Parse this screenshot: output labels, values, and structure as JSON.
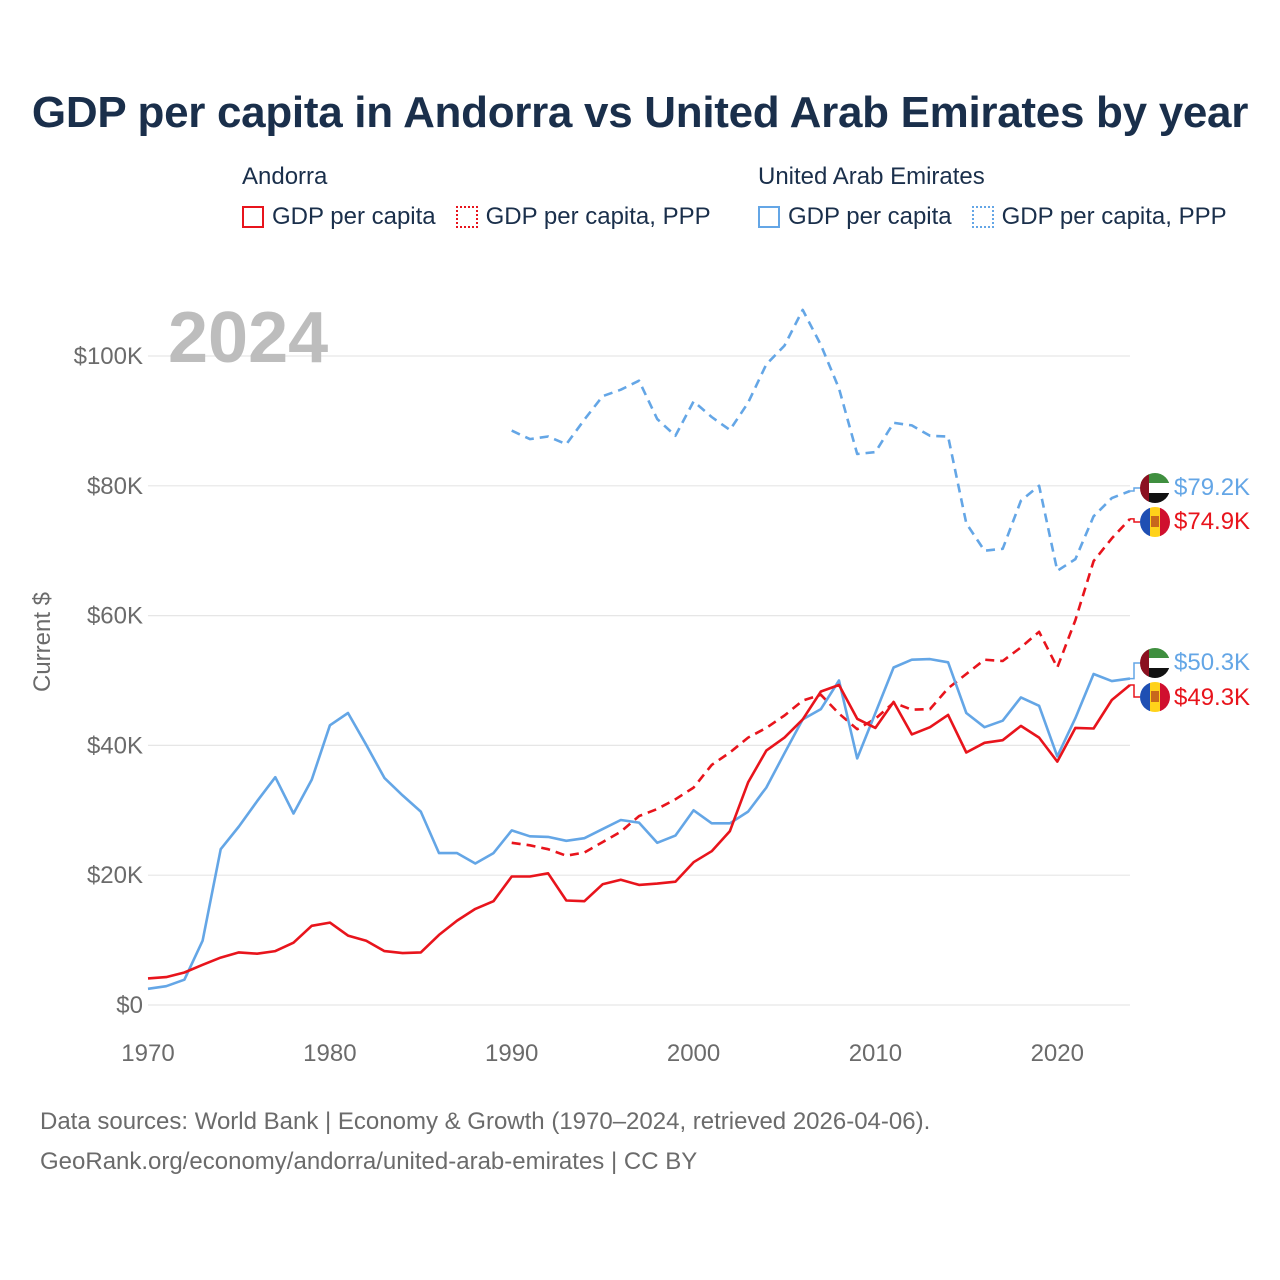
{
  "title": "GDP per capita in Andorra vs United Arab Emirates by year",
  "legend": {
    "groups": [
      {
        "name": "Andorra",
        "items": [
          {
            "label": "GDP per capita",
            "style": "solid",
            "color": "#e8141c"
          },
          {
            "label": "GDP per capita, PPP",
            "style": "dotted",
            "color": "#e8141c"
          }
        ]
      },
      {
        "name": "United Arab Emirates",
        "items": [
          {
            "label": "GDP per capita",
            "style": "solid",
            "color": "#64a6e6"
          },
          {
            "label": "GDP per capita, PPP",
            "style": "dotted",
            "color": "#64a6e6"
          }
        ]
      }
    ]
  },
  "year_label": "2024",
  "footer": {
    "line1": "Data sources: World Bank | Economy & Growth (1970–2024, retrieved 2026-04-06).",
    "line2": "GeoRank.org/economy/andorra/united-arab-emirates | CC BY"
  },
  "chart_data": {
    "type": "line",
    "ylabel": "Current $",
    "xlim": [
      1970,
      2024
    ],
    "ylim": [
      0,
      110000
    ],
    "x_ticks": [
      1970,
      1980,
      1990,
      2000,
      2010,
      2020
    ],
    "y_ticks": [
      0,
      20000,
      40000,
      60000,
      80000,
      100000
    ],
    "y_tick_labels": [
      "$0",
      "$20K",
      "$40K",
      "$60K",
      "$80K",
      "$100K"
    ],
    "series": [
      {
        "name": "United Arab Emirates GDP per capita, PPP",
        "country": "uae",
        "dashed": true,
        "color": "#64a6e6",
        "end_label": "$79.2K",
        "x": [
          1990,
          1991,
          1992,
          1993,
          1994,
          1995,
          1996,
          1997,
          1998,
          1999,
          2000,
          2001,
          2002,
          2003,
          2004,
          2005,
          2006,
          2007,
          2008,
          2009,
          2010,
          2011,
          2012,
          2013,
          2014,
          2015,
          2016,
          2017,
          2018,
          2019,
          2020,
          2021,
          2022,
          2023,
          2024
        ],
        "y": [
          88500,
          87200,
          87600,
          86400,
          90200,
          93800,
          94800,
          96200,
          90300,
          87700,
          93000,
          90600,
          88600,
          92800,
          98700,
          101600,
          107100,
          101700,
          95000,
          84900,
          85200,
          89700,
          89300,
          87700,
          87600,
          74200,
          70000,
          70300,
          77700,
          80000,
          66900,
          68700,
          75300,
          78100,
          79200
        ]
      },
      {
        "name": "Andorra GDP per capita, PPP",
        "country": "andorra",
        "dashed": true,
        "color": "#e8141c",
        "end_label": "$74.9K",
        "x": [
          1990,
          1991,
          1992,
          1993,
          1994,
          1995,
          1996,
          1997,
          1998,
          1999,
          2000,
          2001,
          2002,
          2003,
          2004,
          2005,
          2006,
          2007,
          2008,
          2009,
          2010,
          2011,
          2012,
          2013,
          2014,
          2015,
          2016,
          2017,
          2018,
          2019,
          2020,
          2021,
          2022,
          2023,
          2024
        ],
        "y": [
          25000,
          24600,
          24000,
          23000,
          23500,
          25100,
          26700,
          29100,
          30200,
          31700,
          33500,
          37000,
          38900,
          41200,
          42700,
          44600,
          46900,
          47800,
          44900,
          42500,
          44100,
          46600,
          45500,
          45600,
          48800,
          51000,
          53200,
          53000,
          55100,
          57500,
          52000,
          59300,
          68400,
          71900,
          74900
        ]
      },
      {
        "name": "United Arab Emirates GDP per capita",
        "country": "uae",
        "dashed": false,
        "color": "#64a6e6",
        "end_label": "$50.3K",
        "x": [
          1970,
          1971,
          1972,
          1973,
          1974,
          1975,
          1976,
          1977,
          1978,
          1979,
          1980,
          1981,
          1982,
          1983,
          1984,
          1985,
          1986,
          1987,
          1988,
          1989,
          1990,
          1991,
          1992,
          1993,
          1994,
          1995,
          1996,
          1997,
          1998,
          1999,
          2000,
          2001,
          2002,
          2003,
          2004,
          2005,
          2006,
          2007,
          2008,
          2009,
          2010,
          2011,
          2012,
          2013,
          2014,
          2015,
          2016,
          2017,
          2018,
          2019,
          2020,
          2021,
          2022,
          2023,
          2024
        ],
        "y": [
          2500,
          2900,
          3900,
          9900,
          24000,
          27500,
          31400,
          35100,
          29500,
          34700,
          43100,
          45000,
          40100,
          35000,
          32300,
          29800,
          23400,
          23400,
          21800,
          23400,
          26900,
          26000,
          25900,
          25300,
          25700,
          27100,
          28500,
          28100,
          25000,
          26100,
          30000,
          28000,
          28000,
          29800,
          33500,
          38800,
          44000,
          45600,
          50000,
          38000,
          45000,
          52000,
          53200,
          53300,
          52800,
          45000,
          42800,
          43800,
          47400,
          46100,
          38300,
          44200,
          51000,
          49900,
          50300
        ]
      },
      {
        "name": "Andorra GDP per capita",
        "country": "andorra",
        "dashed": false,
        "color": "#e8141c",
        "end_label": "$49.3K",
        "x": [
          1970,
          1971,
          1972,
          1973,
          1974,
          1975,
          1976,
          1977,
          1978,
          1979,
          1980,
          1981,
          1982,
          1983,
          1984,
          1985,
          1986,
          1987,
          1988,
          1989,
          1990,
          1991,
          1992,
          1993,
          1994,
          1995,
          1996,
          1997,
          1998,
          1999,
          2000,
          2001,
          2002,
          2003,
          2004,
          2005,
          2006,
          2007,
          2008,
          2009,
          2010,
          2011,
          2012,
          2013,
          2014,
          2015,
          2016,
          2017,
          2018,
          2019,
          2020,
          2021,
          2022,
          2023,
          2024
        ],
        "y": [
          4100,
          4300,
          5000,
          6200,
          7300,
          8100,
          7900,
          8300,
          9600,
          12200,
          12700,
          10700,
          9900,
          8300,
          8000,
          8100,
          10800,
          13000,
          14800,
          16000,
          19800,
          19800,
          20300,
          16100,
          16000,
          18600,
          19300,
          18500,
          18700,
          19000,
          22000,
          23700,
          26800,
          34300,
          39200,
          41200,
          44000,
          48300,
          49300,
          44100,
          42700,
          46700,
          41700,
          42800,
          44700,
          38900,
          40400,
          40800,
          43000,
          41200,
          37500,
          42700,
          42600,
          47000,
          49300
        ]
      }
    ]
  }
}
